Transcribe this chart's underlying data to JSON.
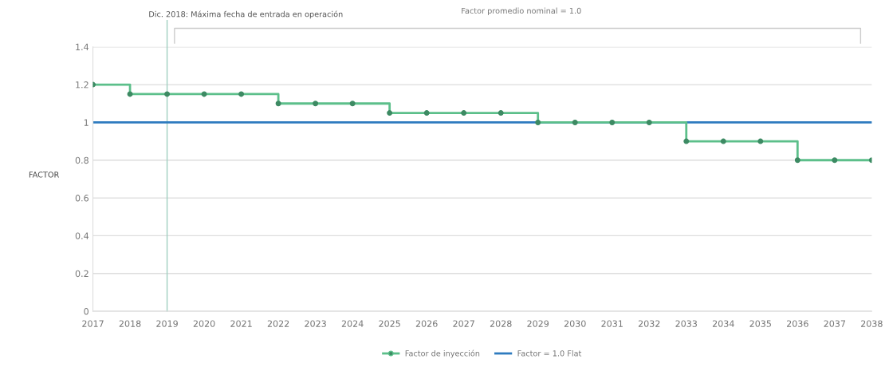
{
  "chart_data": {
    "type": "step",
    "ylabel": "FACTOR",
    "categories": [
      "2017",
      "2018",
      "2019",
      "2020",
      "2021",
      "2022",
      "2023",
      "2024",
      "2025",
      "2026",
      "2027",
      "2028",
      "2029",
      "2030",
      "2031",
      "2032",
      "2033",
      "2034",
      "2035",
      "2036",
      "2037",
      "2038"
    ],
    "series": [
      {
        "name": "Factor de inyección",
        "color": "#5cbf8a",
        "marker": "circle",
        "values": [
          1.2,
          1.15,
          1.15,
          1.15,
          1.15,
          1.1,
          1.1,
          1.1,
          1.05,
          1.05,
          1.05,
          1.05,
          1.0,
          1.0,
          1.0,
          1.0,
          0.9,
          0.9,
          0.9,
          0.8,
          0.8,
          0.8
        ]
      },
      {
        "name": "Factor = 1.0 Flat",
        "type": "line",
        "color": "#2e7bbf",
        "marker": "none",
        "values": [
          1.0,
          1.0,
          1.0,
          1.0,
          1.0,
          1.0,
          1.0,
          1.0,
          1.0,
          1.0,
          1.0,
          1.0,
          1.0,
          1.0,
          1.0,
          1.0,
          1.0,
          1.0,
          1.0,
          1.0,
          1.0,
          1.0
        ]
      }
    ],
    "ylim": [
      0,
      1.4
    ],
    "yticks": [
      0,
      0.2,
      0.4,
      0.6,
      0.8,
      1,
      1.2,
      1.4
    ],
    "ref_lines": [
      {
        "axis": "x",
        "value": "2019",
        "label": "Dic. 2018: Máxima fecha de entrada en operación",
        "color": "#9fcfc0"
      }
    ],
    "annotations": [
      "Factor promedio nominal = 1.0"
    ],
    "grid": "y",
    "legend": "bottom"
  }
}
